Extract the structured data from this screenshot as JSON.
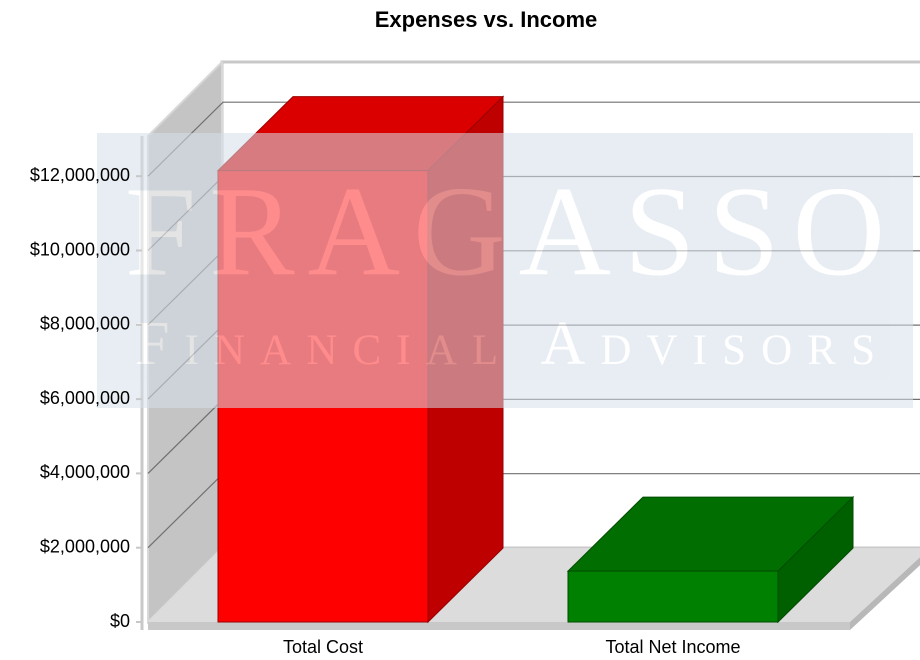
{
  "chart_data": {
    "type": "bar3d",
    "title": "Expenses vs. Income",
    "categories": [
      "Total Cost",
      "Total Net Income"
    ],
    "values": [
      12150000,
      1370000
    ],
    "colors": [
      "#ff0000",
      "#008000"
    ],
    "ylim": [
      0,
      13000000
    ],
    "yticks": [
      {
        "value": 0,
        "label": "$0"
      },
      {
        "value": 2000000,
        "label": "$2,000,000"
      },
      {
        "value": 4000000,
        "label": "$4,000,000"
      },
      {
        "value": 6000000,
        "label": "$6,000,000"
      },
      {
        "value": 8000000,
        "label": "$8,000,000"
      },
      {
        "value": 10000000,
        "label": "$10,000,000"
      },
      {
        "value": 12000000,
        "label": "$12,000,000"
      }
    ],
    "grid": true,
    "watermark": {
      "title": "FRAGASSO",
      "subtitle": "Financial Advisors"
    }
  }
}
